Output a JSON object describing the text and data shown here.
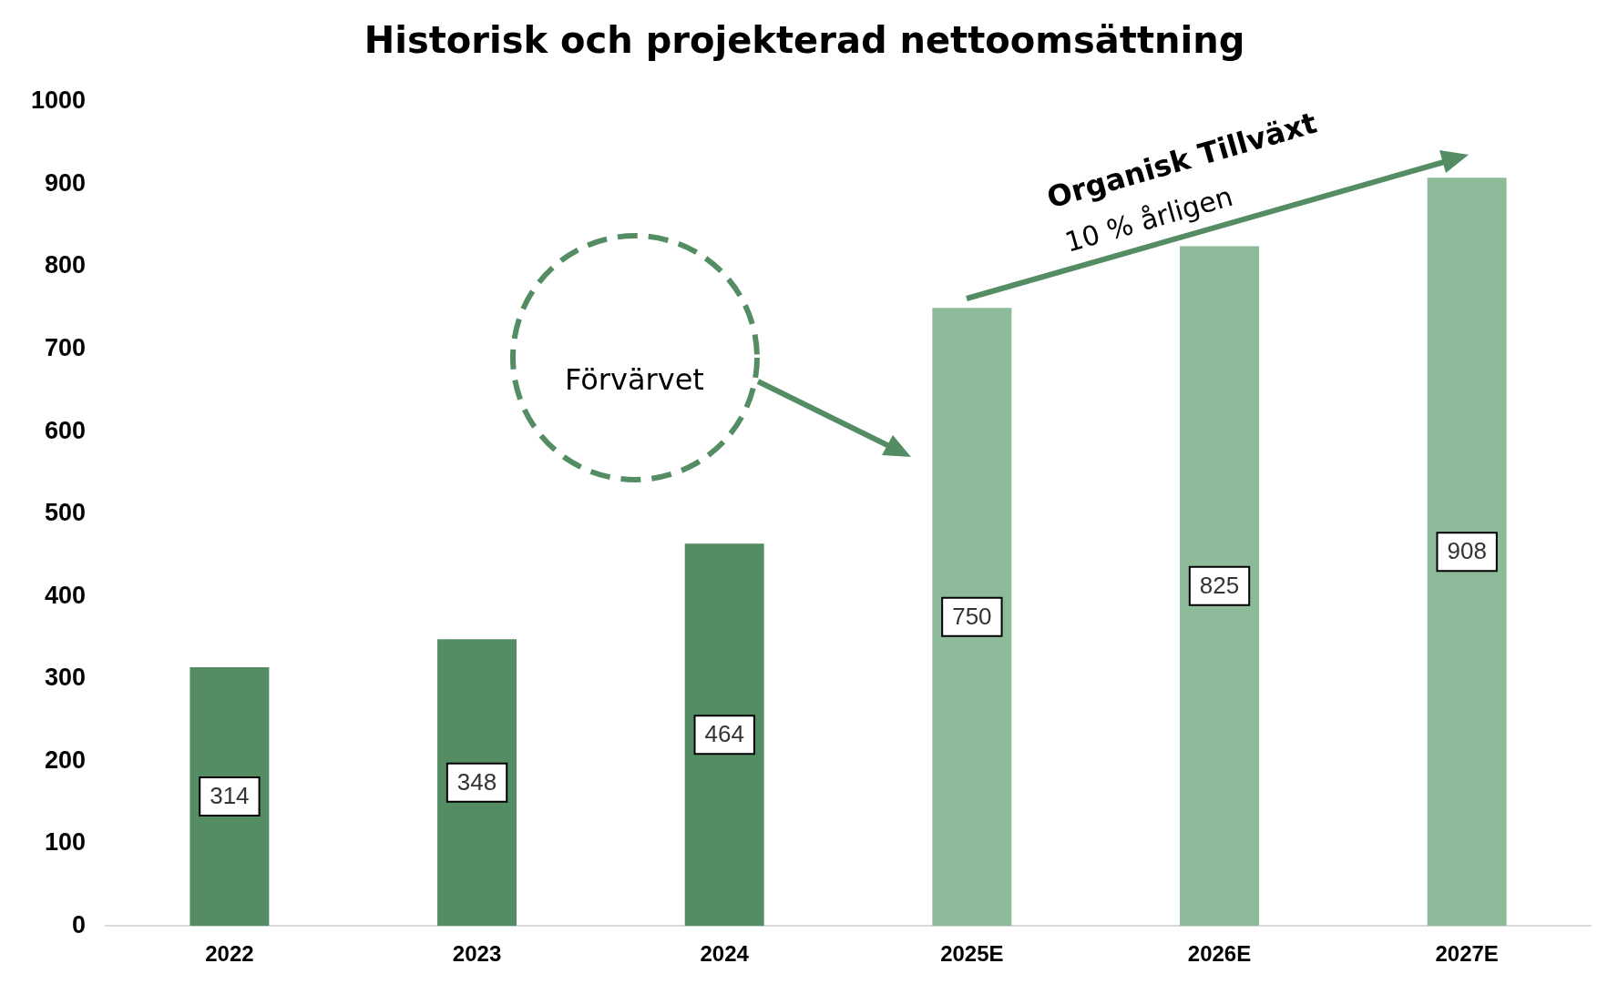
{
  "chart_data": {
    "type": "bar",
    "title": "Historisk och projekterad nettoomsättning",
    "categories": [
      "2022",
      "2023",
      "2024",
      "2025E",
      "2026E",
      "2027E"
    ],
    "values": [
      314,
      348,
      464,
      750,
      825,
      908
    ],
    "colors": [
      "#548d64",
      "#548d64",
      "#548d64",
      "#8dbb99",
      "#8dbb99",
      "#8dbb99"
    ],
    "ylim": [
      0,
      1000
    ],
    "yticks": [
      0,
      100,
      200,
      300,
      400,
      500,
      600,
      700,
      800,
      900,
      1000
    ],
    "grid": false,
    "legend": false,
    "data_labels": true,
    "annotations": [
      "Förvärvet",
      "Organisk Tillväxt",
      "10 % årligen"
    ]
  }
}
